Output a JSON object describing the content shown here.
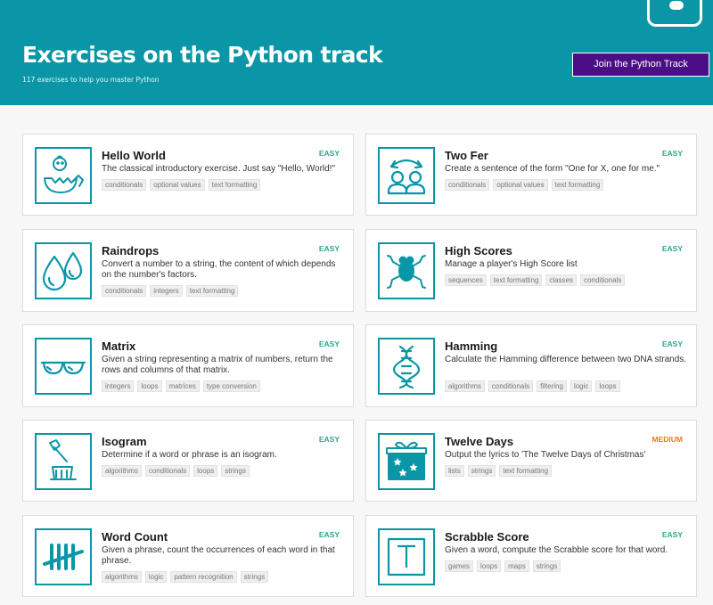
{
  "header": {
    "title": "Exercises on the Python track",
    "subtitle": "117 exercises to help you master Python",
    "join_label": "Join the Python Track",
    "logo_icon": "python-logo-icon"
  },
  "colors": {
    "accent": "#0a96a6",
    "join_bg": "#4a0f84",
    "easy": "#2aa88a",
    "medium": "#e07f1f"
  },
  "exercises": [
    {
      "title": "Hello World",
      "difficulty": "EASY",
      "icon": "hatching-chick-icon",
      "description": "The classical introductory exercise. Just say \"Hello, World!\"",
      "tags": [
        "conditionals",
        "optional values",
        "text formatting"
      ]
    },
    {
      "title": "Two Fer",
      "difficulty": "EASY",
      "icon": "two-people-icon",
      "description": "Create a sentence of the form \"One for X, one for me.\"",
      "tags": [
        "conditionals",
        "optional values",
        "text formatting"
      ]
    },
    {
      "title": "Raindrops",
      "difficulty": "EASY",
      "icon": "raindrops-icon",
      "description": "Convert a number to a string, the content of which depends on the number's factors.",
      "tags": [
        "conditionals",
        "integers",
        "text formatting"
      ]
    },
    {
      "title": "High Scores",
      "difficulty": "EASY",
      "icon": "frog-icon",
      "description": "Manage a player's High Score list",
      "tags": [
        "sequences",
        "text formatting",
        "classes",
        "conditionals"
      ]
    },
    {
      "title": "Matrix",
      "difficulty": "EASY",
      "icon": "sunglasses-icon",
      "description": "Given a string representing a matrix of numbers, return the rows and columns of that matrix.",
      "tags": [
        "integers",
        "loops",
        "matrices",
        "type conversion"
      ]
    },
    {
      "title": "Hamming",
      "difficulty": "EASY",
      "icon": "dna-icon",
      "description": "Calculate the Hamming difference between two DNA strands.",
      "tags": [
        "algorithms",
        "conditionals",
        "filtering",
        "logic",
        "loops"
      ]
    },
    {
      "title": "Isogram",
      "difficulty": "EASY",
      "icon": "axe-stump-icon",
      "description": "Determine if a word or phrase is an isogram.",
      "tags": [
        "algorithms",
        "conditionals",
        "loops",
        "strings"
      ]
    },
    {
      "title": "Twelve Days",
      "difficulty": "MEDIUM",
      "icon": "gift-box-icon",
      "description": "Output the lyrics to 'The Twelve Days of Christmas'",
      "tags": [
        "lists",
        "strings",
        "text formatting"
      ]
    },
    {
      "title": "Word Count",
      "difficulty": "EASY",
      "icon": "tally-marks-icon",
      "description": "Given a phrase, count the occurrences of each word in that phrase.",
      "tags": [
        "algorithms",
        "logic",
        "pattern recognition",
        "strings"
      ]
    },
    {
      "title": "Scrabble Score",
      "difficulty": "EASY",
      "icon": "letter-tile-icon",
      "description": "Given a word, compute the Scrabble score for that word.",
      "tags": [
        "games",
        "loops",
        "maps",
        "strings"
      ]
    }
  ]
}
